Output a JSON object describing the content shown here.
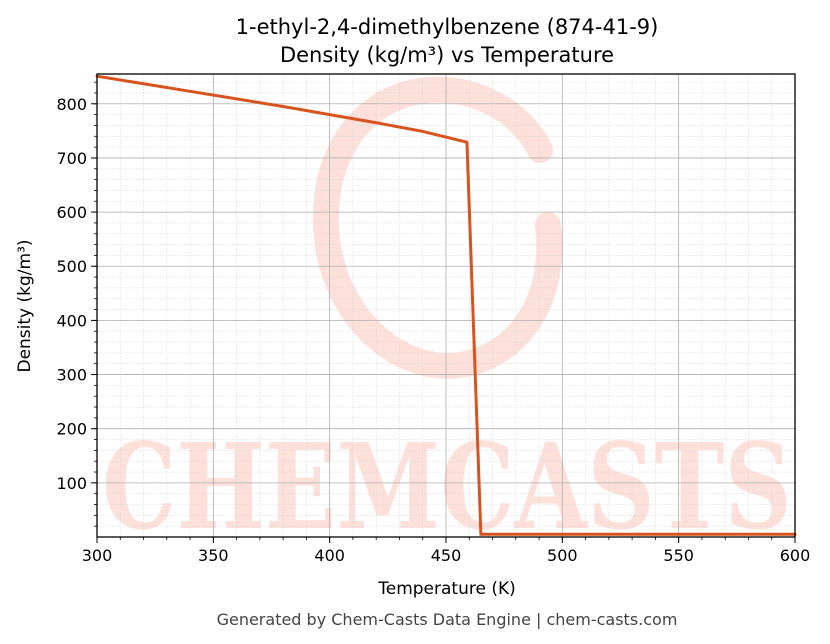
{
  "chart_data": {
    "type": "line",
    "title": "1-ethyl-2,4-dimethylbenzene (874-41-9)",
    "subtitle": "Density (kg/m³) vs Temperature",
    "xlabel": "Temperature (K)",
    "ylabel": "Density (kg/m³)",
    "xlim": [
      300,
      600
    ],
    "ylim": [
      0,
      855
    ],
    "x_ticks": [
      300,
      350,
      400,
      450,
      500,
      550,
      600
    ],
    "y_ticks": [
      100,
      200,
      300,
      400,
      500,
      600,
      700,
      800
    ],
    "grid": true,
    "series": [
      {
        "color": "#d9531e",
        "x": [
          300,
          320,
          340,
          360,
          380,
          400,
          420,
          440,
          459,
          465,
          470,
          500,
          550,
          600
        ],
        "y": [
          851,
          837,
          823,
          809,
          795,
          780,
          765,
          749,
          729,
          5,
          5,
          5,
          5,
          5
        ]
      }
    ]
  },
  "watermark": {
    "text": "CHEMCASTS",
    "color": "#fde0da"
  },
  "footer": "Generated by Chem-Casts Data Engine | chem-casts.com"
}
